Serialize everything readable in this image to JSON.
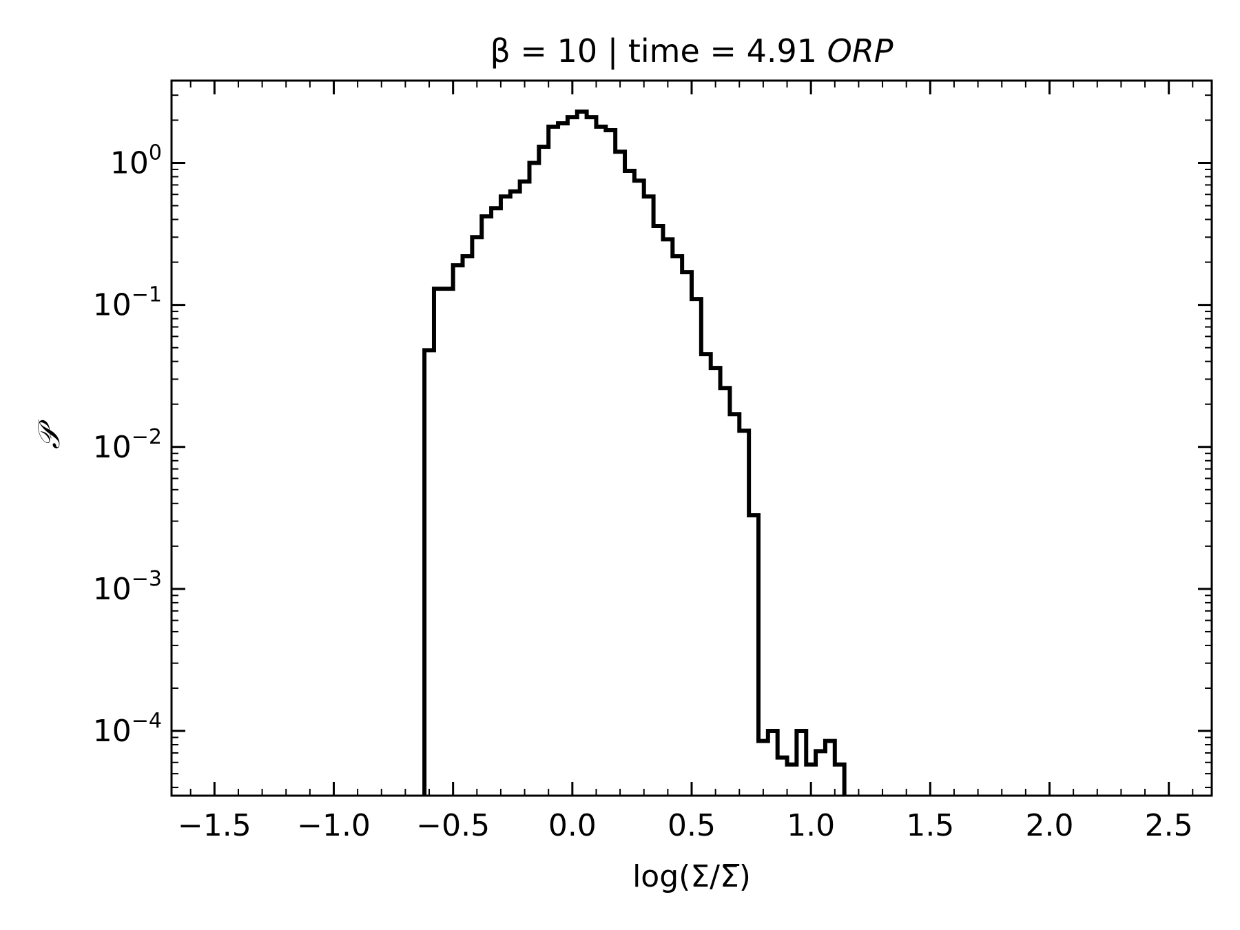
{
  "chart_data": {
    "type": "step",
    "title": {
      "prefix": "β = 10 | time = 4.91 ",
      "emphasis": "ORP"
    },
    "xlabel": "log(Σ/Σ̅)",
    "ylabel": "𝒫",
    "xscale": "linear",
    "yscale": "log",
    "xlim": [
      -1.68,
      2.68
    ],
    "ylim": [
      3.5e-05,
      3.8
    ],
    "grid": false,
    "xticks": [
      {
        "value": -1.5,
        "label": "−1.5"
      },
      {
        "value": -1.0,
        "label": "−1.0"
      },
      {
        "value": -0.5,
        "label": "−0.5"
      },
      {
        "value": 0.0,
        "label": "0.0"
      },
      {
        "value": 0.5,
        "label": "0.5"
      },
      {
        "value": 1.0,
        "label": "1.0"
      },
      {
        "value": 1.5,
        "label": "1.5"
      },
      {
        "value": 2.0,
        "label": "2.0"
      },
      {
        "value": 2.5,
        "label": "2.5"
      }
    ],
    "yticks": [
      {
        "value": 1,
        "base": "10",
        "exp": "0"
      },
      {
        "value": 0.1,
        "base": "10",
        "exp": "−1"
      },
      {
        "value": 0.01,
        "base": "10",
        "exp": "−2"
      },
      {
        "value": 0.001,
        "base": "10",
        "exp": "−3"
      },
      {
        "value": 0.0001,
        "base": "10",
        "exp": "−4"
      }
    ],
    "series": [
      {
        "color": "#000000",
        "bin_edges": [
          -0.62,
          -0.58,
          -0.5,
          -0.46,
          -0.42,
          -0.38,
          -0.34,
          -0.3,
          -0.26,
          -0.22,
          -0.18,
          -0.14,
          -0.1,
          -0.06,
          -0.02,
          0.02,
          0.06,
          0.1,
          0.14,
          0.18,
          0.22,
          0.26,
          0.3,
          0.34,
          0.38,
          0.42,
          0.46,
          0.5,
          0.54,
          0.58,
          0.62,
          0.66,
          0.7,
          0.74,
          0.78,
          0.82,
          0.86,
          0.9,
          0.94,
          0.98,
          1.02,
          1.06,
          1.1,
          1.14
        ],
        "values": [
          0.048,
          0.13,
          0.19,
          0.22,
          0.3,
          0.42,
          0.48,
          0.58,
          0.63,
          0.74,
          1.0,
          1.3,
          1.8,
          1.9,
          2.1,
          2.3,
          2.1,
          1.8,
          1.7,
          1.2,
          0.88,
          0.75,
          0.58,
          0.36,
          0.29,
          0.22,
          0.17,
          0.11,
          0.045,
          0.036,
          0.026,
          0.017,
          0.013,
          0.0033,
          8.5e-05,
          0.0001,
          6.5e-05,
          5.8e-05,
          0.0001,
          5.8e-05,
          7.2e-05,
          8.5e-05,
          5.8e-05
        ]
      }
    ]
  }
}
